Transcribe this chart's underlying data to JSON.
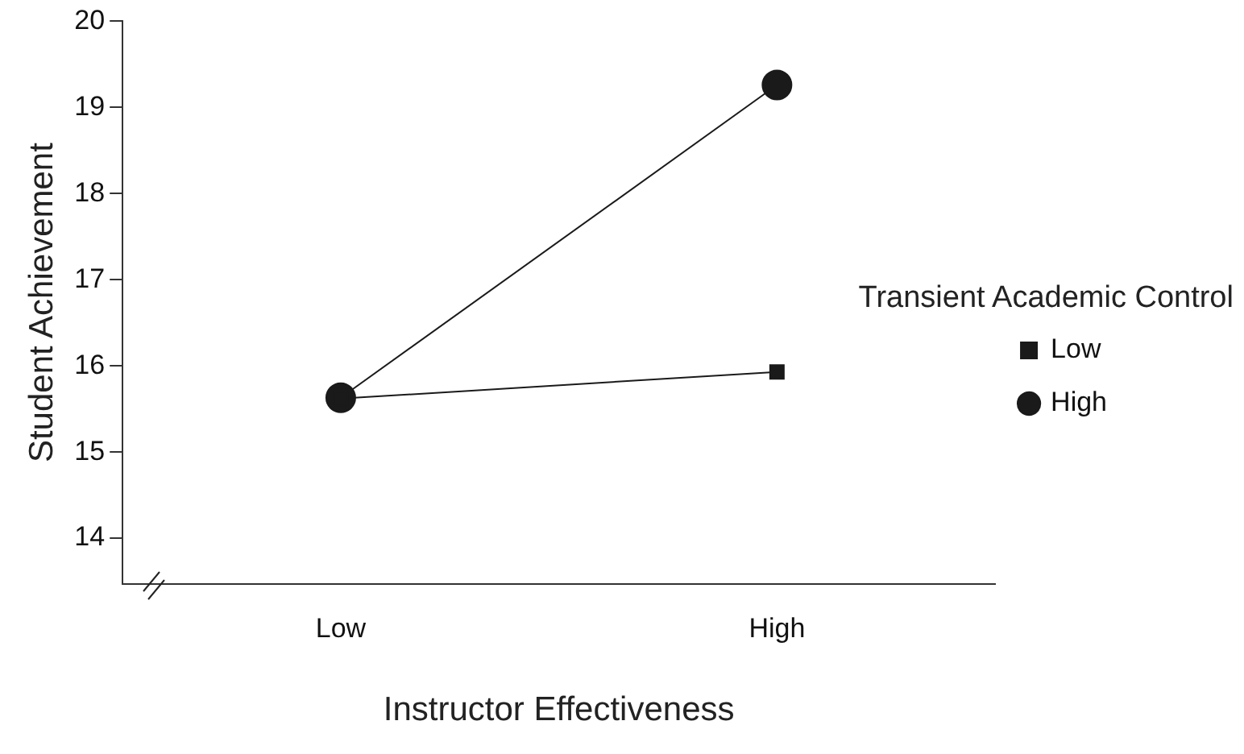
{
  "chart_data": {
    "type": "line",
    "xlabel": "Instructor Effectiveness",
    "ylabel": "Student Achievement",
    "legend_title": "Transient Academic Control",
    "categories": [
      "Low",
      "High"
    ],
    "series": [
      {
        "name": "Low",
        "color": "#1a1a1a",
        "marker": "square",
        "values": [
          15.62,
          15.93
        ]
      },
      {
        "name": "High",
        "color": "#1a1a1a",
        "marker": "circle",
        "values": [
          15.63,
          19.26
        ]
      }
    ],
    "ylim": [
      13.47,
      20
    ],
    "yticks": [
      14,
      15,
      16,
      17,
      18,
      19,
      20
    ],
    "grid": false,
    "legend": "right",
    "line_style": "solid"
  }
}
